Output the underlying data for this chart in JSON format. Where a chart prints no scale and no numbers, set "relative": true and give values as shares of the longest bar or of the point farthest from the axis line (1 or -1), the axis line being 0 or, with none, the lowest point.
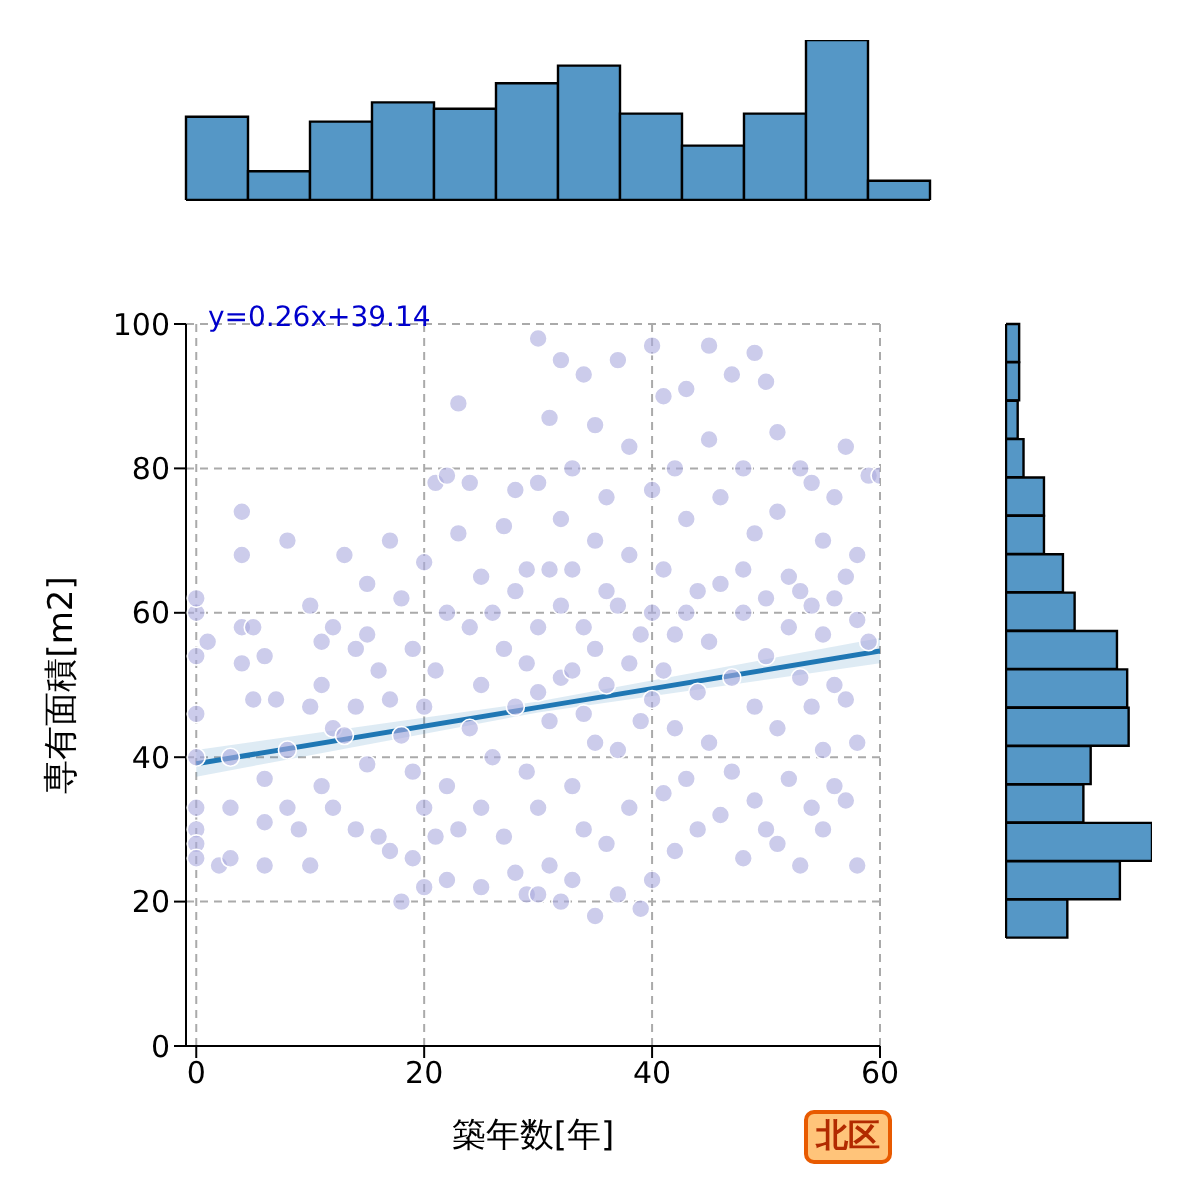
{
  "chart_data": [
    {
      "type": "scatter",
      "xlabel": "築年数[年]",
      "ylabel": "専有面積[m2]",
      "xlim": [
        -0.9,
        60
      ],
      "ylim": [
        0,
        100
      ],
      "xticks": [
        0,
        20,
        40,
        60
      ],
      "yticks": [
        0,
        20,
        40,
        60,
        80,
        100
      ],
      "grid": true,
      "marker": "circle",
      "annotations": [
        "y=0.26x+39.14",
        "北区"
      ],
      "series": [
        {
          "type": "scatter",
          "color": "#aaaadd",
          "x": [
            0,
            0,
            0,
            0,
            0,
            0,
            0,
            0,
            0,
            1,
            2,
            3,
            3,
            3,
            4,
            4,
            4,
            4,
            5,
            5,
            6,
            6,
            6,
            6,
            7,
            8,
            8,
            8,
            9,
            10,
            10,
            10,
            11,
            11,
            11,
            12,
            12,
            12,
            13,
            13,
            14,
            14,
            14,
            15,
            15,
            15,
            16,
            16,
            17,
            17,
            17,
            18,
            18,
            18,
            19,
            19,
            19,
            20,
            20,
            20,
            20,
            21,
            21,
            21,
            22,
            22,
            22,
            22,
            23,
            23,
            23,
            24,
            24,
            24,
            25,
            25,
            25,
            25,
            26,
            26,
            27,
            27,
            27,
            28,
            28,
            28,
            28,
            29,
            29,
            29,
            29,
            30,
            30,
            30,
            30,
            30,
            30,
            31,
            31,
            31,
            31,
            32,
            32,
            32,
            32,
            32,
            33,
            33,
            33,
            33,
            33,
            34,
            34,
            34,
            34,
            35,
            35,
            35,
            35,
            35,
            36,
            36,
            36,
            36,
            37,
            37,
            37,
            37,
            38,
            38,
            38,
            38,
            39,
            39,
            39,
            40,
            40,
            40,
            40,
            40,
            41,
            41,
            41,
            41,
            42,
            42,
            42,
            42,
            43,
            43,
            43,
            43,
            44,
            44,
            44,
            45,
            45,
            45,
            45,
            46,
            46,
            46,
            47,
            47,
            47,
            48,
            48,
            48,
            48,
            49,
            49,
            49,
            49,
            50,
            50,
            50,
            50,
            51,
            51,
            51,
            51,
            52,
            52,
            52,
            53,
            53,
            53,
            53,
            54,
            54,
            54,
            54,
            55,
            55,
            55,
            55,
            56,
            56,
            56,
            56,
            57,
            57,
            57,
            57,
            58,
            58,
            58,
            58,
            59,
            59,
            60
          ],
          "values": [
            60,
            54,
            46,
            40,
            33,
            30,
            28,
            26,
            62,
            56,
            25,
            40,
            26,
            33,
            74,
            68,
            58,
            53,
            58,
            48,
            54,
            37,
            31,
            25,
            48,
            70,
            41,
            33,
            30,
            47,
            61,
            25,
            56,
            50,
            36,
            58,
            44,
            33,
            68,
            43,
            55,
            47,
            30,
            64,
            57,
            39,
            52,
            29,
            70,
            48,
            27,
            62,
            43,
            20,
            55,
            38,
            26,
            67,
            47,
            22,
            33,
            78,
            52,
            29,
            79,
            60,
            36,
            23,
            89,
            71,
            30,
            78,
            58,
            44,
            65,
            50,
            33,
            22,
            60,
            40,
            72,
            55,
            29,
            77,
            63,
            47,
            24,
            66,
            53,
            38,
            21,
            98,
            78,
            58,
            49,
            33,
            21,
            87,
            66,
            45,
            25,
            95,
            73,
            61,
            51,
            20,
            80,
            66,
            52,
            36,
            23,
            93,
            58,
            46,
            30,
            86,
            70,
            55,
            42,
            18,
            76,
            63,
            50,
            28,
            95,
            61,
            41,
            21,
            83,
            68,
            53,
            33,
            57,
            45,
            19,
            97,
            77,
            60,
            48,
            23,
            90,
            66,
            52,
            35,
            80,
            57,
            44,
            27,
            91,
            73,
            60,
            37,
            63,
            49,
            30,
            97,
            84,
            56,
            42,
            76,
            64,
            32,
            93,
            51,
            38,
            80,
            66,
            60,
            26,
            96,
            71,
            47,
            34,
            92,
            62,
            54,
            30,
            85,
            74,
            44,
            28,
            65,
            58,
            37,
            80,
            63,
            51,
            25,
            78,
            61,
            47,
            33,
            70,
            57,
            41,
            30,
            76,
            62,
            50,
            36,
            83,
            65,
            48,
            34,
            68,
            59,
            42,
            25,
            79,
            56,
            79
          ]
        },
        {
          "type": "line",
          "color": "#1f77b4",
          "marker": "none",
          "x": [
            0,
            30,
            60
          ],
          "values": [
            39.1,
            46.9,
            54.7
          ],
          "lower": [
            37.3,
            46.2,
            53.0
          ],
          "upper": [
            41.0,
            47.7,
            56.5
          ]
        }
      ]
    },
    {
      "type": "bar",
      "relative": true,
      "color": "#5597c6",
      "categories": [
        null,
        null,
        null,
        null,
        null,
        null,
        null,
        null,
        null,
        null,
        null,
        null
      ],
      "values": [
        0.52,
        0.18,
        0.49,
        0.61,
        0.57,
        0.73,
        0.84,
        0.54,
        0.34,
        0.54,
        1,
        0.12
      ]
    },
    {
      "type": "bar",
      "orientation": "horizontal",
      "relative": true,
      "color": "#5597c6",
      "categories": [
        null,
        null,
        null,
        null,
        null,
        null,
        null,
        null,
        null,
        null,
        null,
        null,
        null,
        null,
        null,
        null
      ],
      "values": [
        0.09,
        0.09,
        0.08,
        0.12,
        0.26,
        0.26,
        0.39,
        0.47,
        0.76,
        0.83,
        0.84,
        0.58,
        0.53,
        1,
        0.78,
        0.42
      ]
    }
  ]
}
